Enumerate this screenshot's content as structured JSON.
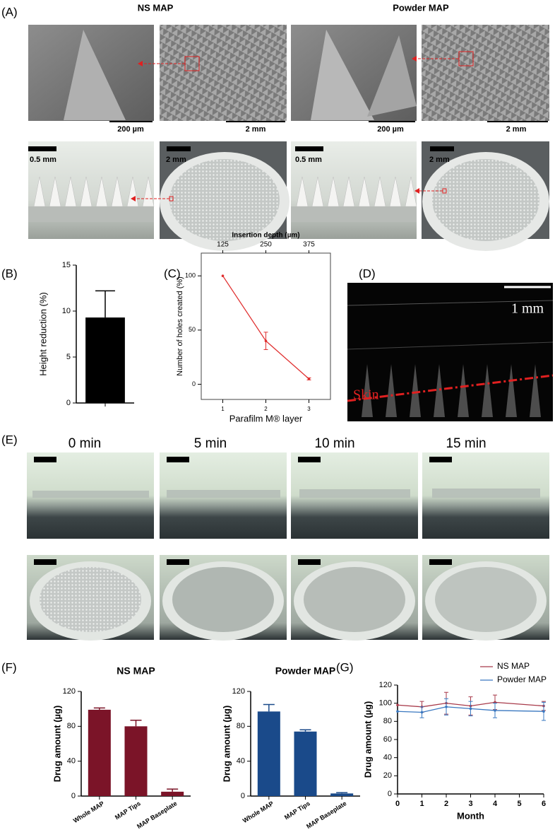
{
  "panel_labels": [
    "(A)",
    "(B)",
    "(C)",
    "(D)",
    "(E)",
    "(F)",
    "(G)"
  ],
  "panel_a": {
    "columns": [
      "NS MAP",
      "Powder MAP"
    ],
    "scale_bars": [
      "200 µm",
      "2 mm",
      "200 µm",
      "2 mm",
      "0.5 mm",
      "2 mm",
      "0.5 mm",
      "2 mm"
    ]
  },
  "panel_d": {
    "scale_bar": "1 mm",
    "label": "Skin"
  },
  "panel_e": {
    "times": [
      "0 min",
      "5 min",
      "10 min",
      "15 min"
    ]
  },
  "chart_data": [
    {
      "type": "bar",
      "ylabel": "Height reduction (%)",
      "categories": [
        null
      ],
      "values": [
        9.3
      ],
      "errors": [
        2.9
      ],
      "color": "#000000",
      "ylim": [
        0,
        15
      ],
      "yticks": [
        0,
        5,
        10,
        15
      ]
    },
    {
      "type": "line",
      "xlabel": "Parafilm M® layer",
      "ylabel": "Number of holes created (%)",
      "x2label": "Insertion depth (µm)",
      "x": [
        1,
        2,
        3
      ],
      "values": [
        100,
        40,
        5
      ],
      "errors": [
        null,
        8,
        1
      ],
      "color": "#e03030",
      "xlim": [
        0.5,
        3.5
      ],
      "xticks": [
        1,
        2,
        3
      ],
      "x2lim": [
        62.5,
        437.5
      ],
      "x2ticks": [
        125,
        250,
        375
      ],
      "ylim": [
        -14,
        121
      ],
      "yticks": [
        0,
        50,
        100
      ]
    },
    {
      "type": "bar",
      "title": "NS MAP",
      "ylabel": "Drug amount (µg)",
      "categories": [
        "Whole MAP",
        "MAP Tips",
        "MAP Baseplate"
      ],
      "values": [
        99,
        80,
        5
      ],
      "errors": [
        2,
        7,
        3
      ],
      "color": "#7b1428",
      "ylim": [
        0,
        120
      ],
      "yticks": [
        0,
        40,
        80,
        120
      ]
    },
    {
      "type": "bar",
      "title": "Powder MAP",
      "ylabel": "Drug amount (µg)",
      "categories": [
        "Whole MAP",
        "MAP Tips",
        "MAP Baseplate"
      ],
      "values": [
        97,
        74,
        3
      ],
      "errors": [
        8,
        2,
        1
      ],
      "color": "#1a4a8a",
      "ylim": [
        0,
        120
      ],
      "yticks": [
        0,
        40,
        80,
        120
      ]
    },
    {
      "type": "line",
      "xlabel": "Month",
      "ylabel": "Drug amount (µg)",
      "x": [
        0,
        1,
        2,
        3,
        4,
        6
      ],
      "series": [
        {
          "name": "NS MAP",
          "color": "#a83a4a",
          "values": [
            98,
            96,
            100,
            97,
            101,
            97
          ],
          "errors": [
            null,
            6,
            12,
            10,
            8,
            5
          ]
        },
        {
          "name": "Powder MAP",
          "color": "#3a78c0",
          "values": [
            91,
            90,
            96,
            94,
            92,
            91
          ],
          "errors": [
            null,
            6,
            9,
            8,
            8,
            10
          ]
        }
      ],
      "xlim": [
        0,
        6
      ],
      "xticks": [
        0,
        1,
        2,
        3,
        4,
        5,
        6
      ],
      "ylim": [
        0,
        120
      ],
      "yticks": [
        0,
        20,
        40,
        60,
        80,
        100,
        120
      ],
      "legend": "top-right"
    }
  ]
}
